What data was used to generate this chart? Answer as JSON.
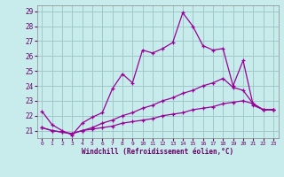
{
  "xlabel": "Windchill (Refroidissement éolien,°C)",
  "bg_color": "#c8ecec",
  "grid_color": "#a0c8c8",
  "line_color": "#990099",
  "xlim": [
    -0.5,
    23.5
  ],
  "ylim": [
    20.5,
    29.4
  ],
  "xticks": [
    0,
    1,
    2,
    3,
    4,
    5,
    6,
    7,
    8,
    9,
    10,
    11,
    12,
    13,
    14,
    15,
    16,
    17,
    18,
    19,
    20,
    21,
    22,
    23
  ],
  "yticks": [
    21,
    22,
    23,
    24,
    25,
    26,
    27,
    28,
    29
  ],
  "line1_x": [
    0,
    1,
    2,
    3,
    4,
    5,
    6,
    7,
    8,
    9,
    10,
    11,
    12,
    13,
    14,
    15,
    16,
    17,
    18,
    19,
    20,
    21,
    22,
    23
  ],
  "line1_y": [
    22.3,
    21.4,
    21.0,
    20.7,
    21.5,
    21.9,
    22.2,
    23.8,
    24.8,
    24.2,
    26.4,
    26.2,
    26.5,
    26.9,
    28.9,
    28.0,
    26.7,
    26.4,
    26.5,
    24.0,
    25.7,
    22.7,
    22.4,
    22.4
  ],
  "line2_x": [
    0,
    1,
    2,
    3,
    4,
    5,
    6,
    7,
    8,
    9,
    10,
    11,
    12,
    13,
    14,
    15,
    16,
    17,
    18,
    19,
    20,
    21,
    22,
    23
  ],
  "line2_y": [
    21.2,
    21.0,
    20.9,
    20.8,
    21.0,
    21.2,
    21.5,
    21.7,
    22.0,
    22.2,
    22.5,
    22.7,
    23.0,
    23.2,
    23.5,
    23.7,
    24.0,
    24.2,
    24.5,
    23.9,
    23.7,
    22.8,
    22.4,
    22.4
  ],
  "line3_x": [
    0,
    1,
    2,
    3,
    4,
    5,
    6,
    7,
    8,
    9,
    10,
    11,
    12,
    13,
    14,
    15,
    16,
    17,
    18,
    19,
    20,
    21,
    22,
    23
  ],
  "line3_y": [
    21.2,
    21.0,
    20.9,
    20.8,
    21.0,
    21.1,
    21.2,
    21.3,
    21.5,
    21.6,
    21.7,
    21.8,
    22.0,
    22.1,
    22.2,
    22.4,
    22.5,
    22.6,
    22.8,
    22.9,
    23.0,
    22.8,
    22.4,
    22.4
  ]
}
